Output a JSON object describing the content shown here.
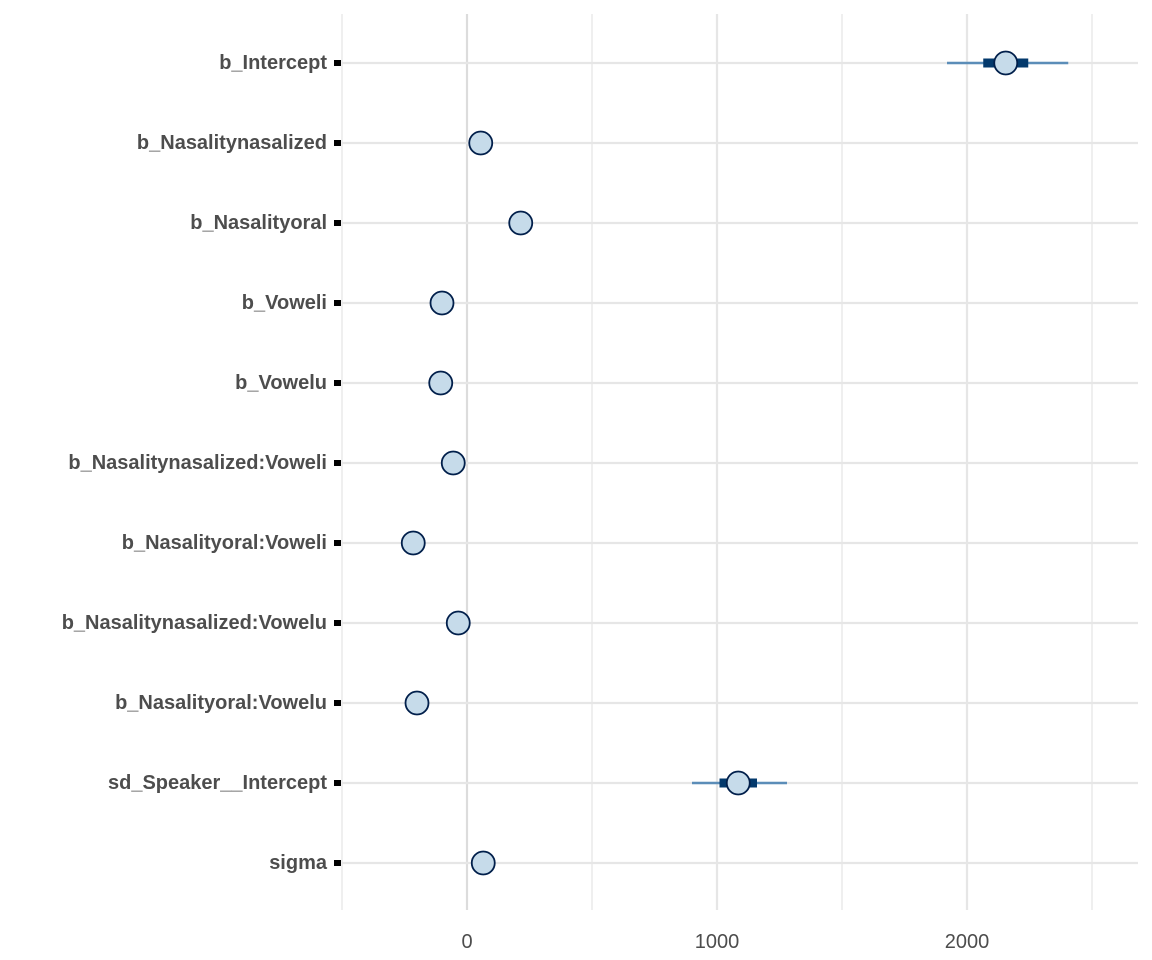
{
  "chart_data": {
    "type": "scatter",
    "title": "",
    "xlabel": "",
    "ylabel": "",
    "xlim": [
      -500,
      2700
    ],
    "x_ticks": [
      0,
      1000,
      2000
    ],
    "x_tick_labels": [
      "0",
      "1000",
      "2000"
    ],
    "grid": true,
    "legend": "none",
    "colors": {
      "point_fill": "#c6dbea",
      "point_stroke": "#011f4b",
      "inner_interval": "#03396c",
      "outer_interval": "#5b8db8",
      "grid_major": "#e6e6e6",
      "grid_zero": "#dcdcdc",
      "text": "#4d4d4d"
    },
    "parameters": [
      {
        "label": "b_Intercept",
        "estimate": 2155,
        "inner": [
          2065,
          2245
        ],
        "outer": [
          1920,
          2405
        ]
      },
      {
        "label": "b_Nasalitynasalized",
        "estimate": 55,
        "inner": [
          40,
          70
        ],
        "outer": [
          30,
          80
        ]
      },
      {
        "label": "b_Nasalityoral",
        "estimate": 215,
        "inner": [
          200,
          230
        ],
        "outer": [
          190,
          240
        ]
      },
      {
        "label": "b_Voweli",
        "estimate": -100,
        "inner": [
          -115,
          -85
        ],
        "outer": [
          -125,
          -75
        ]
      },
      {
        "label": "b_Vowelu",
        "estimate": -105,
        "inner": [
          -120,
          -90
        ],
        "outer": [
          -130,
          -80
        ]
      },
      {
        "label": "b_Nasalitynasalized:Voweli",
        "estimate": -55,
        "inner": [
          -70,
          -40
        ],
        "outer": [
          -80,
          -30
        ]
      },
      {
        "label": "b_Nasalityoral:Voweli",
        "estimate": -215,
        "inner": [
          -230,
          -200
        ],
        "outer": [
          -240,
          -190
        ]
      },
      {
        "label": "b_Nasalitynasalized:Vowelu",
        "estimate": -35,
        "inner": [
          -50,
          -20
        ],
        "outer": [
          -60,
          -10
        ]
      },
      {
        "label": "b_Nasalityoral:Vowelu",
        "estimate": -200,
        "inner": [
          -215,
          -185
        ],
        "outer": [
          -225,
          -175
        ]
      },
      {
        "label": "sd_Speaker__Intercept",
        "estimate": 1085,
        "inner": [
          1010,
          1160
        ],
        "outer": [
          900,
          1280
        ]
      },
      {
        "label": "sigma",
        "estimate": 65,
        "inner": [
          50,
          80
        ],
        "outer": [
          40,
          90
        ]
      }
    ]
  }
}
